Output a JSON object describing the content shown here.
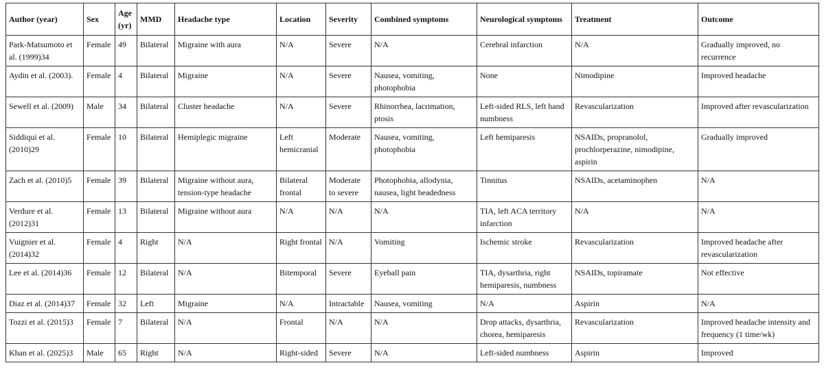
{
  "table": {
    "header": [
      "Author (year)",
      "Sex",
      "Age (yr)",
      "MMD",
      "Headache type",
      "Location",
      "Severity",
      "Combined symptoms",
      "Neurological symptoms",
      "Treatment",
      "Outcome"
    ],
    "rows": [
      [
        "Park-Matsumoto et al. (1999)34",
        "Female",
        "49",
        "Bilateral",
        "Migraine with aura",
        "N/A",
        "Severe",
        "N/A",
        "Cerebral infarction",
        "N/A",
        "Gradually improved, no recurrence"
      ],
      [
        "Aydin et al. (2003).",
        "Female",
        "4",
        "Bilateral",
        "Migraine",
        "N/A",
        "Severe",
        "Nausea, vomiting, photophobia",
        "None",
        "Nimodipine",
        "Improved headache"
      ],
      [
        "Sewell et al. (2009)",
        "Male",
        "34",
        "Bilateral",
        "Cluster headache",
        "N/A",
        "Severe",
        "Rhinorrhea, lacrimation, ptosis",
        "Left-sided RLS, left hand numbness",
        "Revascularization",
        "Improved after revascularization"
      ],
      [
        "Siddiqui et al. (2010)29",
        "Female",
        "10",
        "Bilateral",
        "Hemiplegic migraine",
        "Left hemicranial",
        "Moderate",
        "Nausea, vomiting, photophobia",
        "Left hemiparesis",
        "NSAIDs, propranolol, prochlorperazine, nimodipine, aspirin",
        "Gradually improved"
      ],
      [
        "Zach et al. (2010)5",
        "Female",
        "39",
        "Bilateral",
        "Migraine without aura, tension-type headache",
        "Bilateral frontal",
        "Moderate to severe",
        "Photophobia, allodynia, nausea, light headedness",
        "Tinnitus",
        "NSAIDs, acetaminophen",
        "N/A"
      ],
      [
        "Verdure et al. (2012)31",
        "Female",
        "13",
        "Bilateral",
        "Migraine without aura",
        "N/A",
        "N/A",
        "N/A",
        "TIA, left ACA territory infarction",
        "N/A",
        "N/A"
      ],
      [
        "Vuignier et al. (2014)32",
        "Female",
        "4",
        "Right",
        "N/A",
        "Right frontal",
        "N/A",
        "Vomiting",
        "Ischemic stroke",
        "Revascularization",
        "Improved headache after revascularization"
      ],
      [
        "Lee et al. (2014)36",
        "Female",
        "12",
        "Bilateral",
        "N/A",
        "Bitemporal",
        "Severe",
        "Eyeball pain",
        "TIA, dysarthria, right hemiparesis, numbness",
        "NSAIDs, topiramate",
        "Not effective"
      ],
      [
        "Diaz et al. (2014)37",
        "Female",
        "32",
        "Left",
        "Migraine",
        "N/A",
        "Intractable",
        "Nausea, vomiting",
        "N/A",
        "Aspirin",
        "N/A"
      ],
      [
        "Tozzi et al. (2015)3",
        "Female",
        "7",
        "Bilateral",
        "N/A",
        "Frontal",
        "N/A",
        "N/A",
        "Drop attacks, dysarthria, chorea, hemiparesis",
        "Revascularization",
        "Improved headache intensity and frequency (1 time/wk)"
      ],
      [
        "Khan et al. (2025)3",
        "Male",
        "65",
        "Right",
        "N/A",
        "Right-sided",
        "Severe",
        "N/A",
        "Left-sided numbness",
        "Aspirin",
        "Improved"
      ]
    ]
  }
}
